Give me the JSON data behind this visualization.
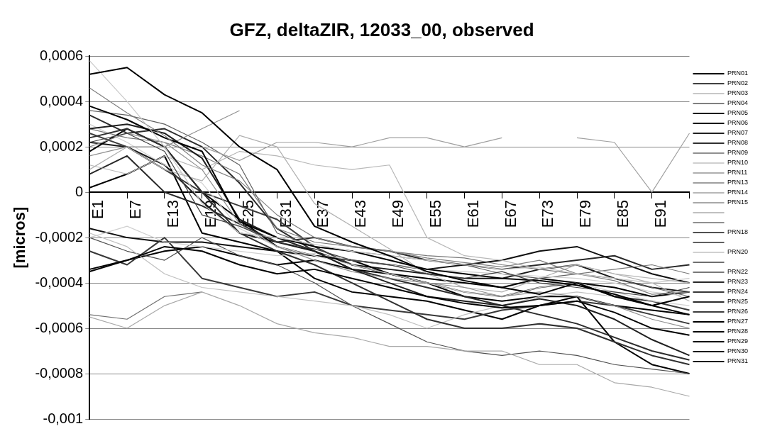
{
  "chart_data": {
    "type": "line",
    "title": "GFZ, deltaZIR, 12033_00, observed",
    "ylabel": "[micros]",
    "legend": "right",
    "grid": "y",
    "marker": "none",
    "categories": [
      "E1",
      "E7",
      "E13",
      "E19",
      "E25",
      "E31",
      "E37",
      "E43",
      "E49",
      "E55",
      "E61",
      "E67",
      "E73",
      "E79",
      "E85",
      "E91",
      null
    ],
    "ylim": [
      -0.001,
      0.0006
    ],
    "yticks": [
      {
        "value": -0.001,
        "label": "-0,001"
      },
      {
        "value": -0.0008,
        "label": "-0,0008"
      },
      {
        "value": -0.0006,
        "label": "-0,0006"
      },
      {
        "value": -0.0004,
        "label": "-0,0004"
      },
      {
        "value": -0.0002,
        "label": "-0,0002"
      },
      0,
      {
        "value": 0.0002,
        "label": "0,0002"
      },
      {
        "value": 0.0004,
        "label": "0,0004"
      },
      {
        "value": 0.0006,
        "label": "0,0006"
      }
    ],
    "series": [
      {
        "name": "PRN01",
        "color": "#000000",
        "values": [
          0.00052,
          0.00055,
          0.00043,
          0.00035,
          0.0002,
          0.0001,
          -0.00015,
          -0.00022,
          -0.00028,
          -0.00035,
          -0.00039,
          -0.00042,
          -0.00045,
          -0.0004,
          -0.00046,
          -0.0005,
          -0.00046
        ]
      },
      {
        "name": "PRN02",
        "color": "#404040",
        "values": [
          0.00022,
          0.00026,
          0.00018,
          -0.0001,
          -0.00015,
          -0.00022,
          -0.00025,
          -0.0003,
          -0.00032,
          -0.00036,
          -0.00038,
          -0.00035,
          -0.0004,
          -0.00042,
          -0.00044,
          -0.00046,
          -0.00042
        ]
      },
      {
        "name": "PRN03",
        "color": "#c8c8c8",
        "values": [
          0.00058,
          0.0004,
          0.0002,
          -5e-05,
          -0.00018,
          -0.0002,
          -0.00023,
          -0.00026,
          -0.00028,
          -0.0003,
          -0.00032,
          -0.00034,
          -0.00033,
          -0.00036,
          -0.00038,
          -0.0004,
          -0.00038
        ]
      },
      {
        "name": "PRN04",
        "color": "#808080",
        "values": [
          0.00046,
          0.00035,
          0.00025,
          0.00012,
          5e-05,
          -0.0001,
          -0.0002,
          -0.00024,
          -0.00026,
          -0.00029,
          -0.00031,
          -0.00033,
          -0.0003,
          -0.00036,
          -0.00039,
          -0.00045,
          -0.00044
        ]
      },
      {
        "name": "PRN05",
        "color": "#000000",
        "values": [
          0.00038,
          0.00032,
          0.00024,
          0.00018,
          -0.00013,
          -0.0002,
          -0.00024,
          -0.00026,
          -0.0003,
          -0.00034,
          -0.00036,
          -0.00038,
          -0.00039,
          -0.00041,
          -0.00045,
          -0.0005,
          -0.00054
        ]
      },
      {
        "name": "PRN06",
        "color": "#000000",
        "values": [
          -0.00035,
          -0.0003,
          -0.00024,
          -0.00026,
          -0.00032,
          -0.00036,
          -0.00034,
          -0.00038,
          -0.00042,
          -0.00046,
          -0.00049,
          -0.00051,
          -0.0005,
          -0.00048,
          -0.00053,
          -0.0006,
          -0.00063
        ]
      },
      {
        "name": "PRN07",
        "color": "#202020",
        "values": [
          0.00028,
          0.0003,
          0.00026,
          0.00015,
          -0.00012,
          -0.0002,
          -0.00026,
          -0.00034,
          -0.0004,
          -0.00046,
          -0.00048,
          -0.0005,
          -0.00047,
          -0.0005,
          -0.00056,
          -0.00065,
          -0.00072
        ]
      },
      {
        "name": "PRN08",
        "color": "#303030",
        "values": [
          0.00024,
          0.00028,
          0.0002,
          0,
          -0.00018,
          -0.00026,
          -0.00032,
          -0.0004,
          -0.00048,
          -0.00056,
          -0.0006,
          -0.0006,
          -0.00058,
          -0.0006,
          -0.00066,
          -0.00072,
          -0.00076
        ]
      },
      {
        "name": "PRN09",
        "color": "#909090",
        "values": [
          0.0002,
          0.00026,
          0.00022,
          0.0001,
          -0.00014,
          -0.00024,
          -0.0003,
          -0.00035,
          -0.00038,
          -0.0004,
          -0.00042,
          -0.00046,
          -0.00044,
          -0.00046,
          -0.0005,
          -0.00056,
          -0.0006
        ]
      },
      {
        "name": "PRN10",
        "color": "#d0d0d0",
        "values": [
          -0.0002,
          -0.00015,
          -0.00022,
          -0.00024,
          -0.00026,
          -0.00028,
          -0.00027,
          -0.0003,
          -0.00032,
          -0.00034,
          -0.00035,
          -0.00036,
          -0.00037,
          -0.00038,
          -0.0004,
          -0.00044,
          -0.00046
        ]
      },
      {
        "name": "PRN11",
        "color": "#b0b0b0",
        "values": [
          0.0001,
          0.0002,
          0.0001,
          5e-05,
          0.00025,
          0.0002,
          -5e-05,
          -0.00015,
          -0.00025,
          -0.00036,
          -0.00042,
          -0.00044,
          -0.00038,
          -0.00032,
          -0.00036,
          -0.0004,
          -0.00048
        ]
      },
      {
        "name": "PRN13",
        "color": "#a0a0a0",
        "values": [
          null,
          null,
          null,
          0.0002,
          0.00014,
          0.00022,
          0.00022,
          0.0002,
          0.00024,
          0.00024,
          0.0002,
          0.00024,
          null,
          0.00024,
          0.00022,
          0,
          0.00026
        ]
      },
      {
        "name": "PRN14",
        "color": "#b8b8b8",
        "values": [
          0.00012,
          8e-05,
          0.00016,
          0.0001,
          0.00018,
          0.00016,
          0.00012,
          0.0001,
          0.00012,
          -0.0002,
          -0.00028,
          -0.0003,
          -0.00034,
          -0.00032,
          -0.00036,
          -0.00038,
          -0.0004
        ]
      },
      {
        "name": "PRN15",
        "color": "#a8a8a8",
        "values": [
          -0.00055,
          -0.0006,
          -0.0005,
          -0.00044,
          -0.0005,
          -0.00058,
          -0.00062,
          -0.00064,
          -0.00068,
          -0.00068,
          -0.0007,
          -0.0007,
          -0.00076,
          -0.00076,
          -0.00084,
          -0.00086,
          -0.0009
        ]
      },
      {
        "color": "#c0c0c0",
        "values": [
          -0.00018,
          -0.00024,
          -0.00036,
          -0.00042,
          -0.00044,
          -0.00046,
          -0.00048,
          -0.0005,
          -0.00054,
          -0.0006,
          -0.00054,
          -0.0005,
          -0.00046,
          -0.00044,
          -0.00046,
          -0.0005,
          -0.00054
        ]
      },
      {
        "color": "#909090",
        "values": [
          0.00016,
          0.0002,
          0.0002,
          0.00028,
          0.00036,
          null,
          null,
          null,
          null,
          null,
          null,
          null,
          null,
          null,
          null,
          null,
          null
        ]
      },
      {
        "name": "PRN18",
        "color": "#505050",
        "values": [
          -0.0002,
          -0.00026,
          -0.0003,
          -0.0002,
          -0.00028,
          -0.00032,
          -0.0004,
          -0.0005,
          -0.00058,
          -0.00066,
          -0.0007,
          -0.00072,
          -0.0007,
          -0.00072,
          -0.00076,
          -0.00078,
          -0.0008
        ]
      },
      {
        "color": "#606060",
        "values": [
          0.00036,
          0.00034,
          0.0003,
          0.00022,
          0.00012,
          -0.00018,
          -0.00024,
          -0.00026,
          -0.00028,
          -0.0003,
          -0.00032,
          -0.00036,
          -0.00038,
          -0.00036,
          -0.00038,
          -0.00042,
          -0.00046
        ]
      },
      {
        "name": "PRN20",
        "color": "#d0d0d0",
        "values": [
          0.0003,
          0.00022,
          0.00012,
          4e-05,
          -0.00016,
          -0.00024,
          -0.00028,
          -0.00032,
          -0.00036,
          -0.0004,
          -0.00044,
          -0.00046,
          -0.00042,
          -0.0004,
          -0.00044,
          -0.00048,
          -0.0005
        ]
      },
      {
        "color": "#707070",
        "values": [
          -0.00054,
          -0.00056,
          -0.00046,
          -0.00044,
          null,
          null,
          null,
          null,
          null,
          null,
          null,
          null,
          null,
          null,
          null,
          null,
          null
        ]
      },
      {
        "name": "PRN22",
        "color": "#787878",
        "values": [
          0.00028,
          0.00024,
          0.00022,
          0.00016,
          8e-05,
          -0.00016,
          -0.00022,
          -0.00024,
          -0.00026,
          -0.00028,
          -0.00029,
          -0.00032,
          -0.00034,
          -0.00036,
          -0.00034,
          -0.00032,
          -0.00036
        ]
      },
      {
        "name": "PRN23",
        "color": "#282828",
        "values": [
          8e-05,
          0.00016,
          0,
          -6e-05,
          -0.00014,
          -0.00022,
          -0.0002,
          -0.00024,
          -0.00026,
          -0.0003,
          -0.00032,
          -0.00034,
          -0.00032,
          -0.0003,
          -0.00028,
          -0.00034,
          -0.00032
        ]
      },
      {
        "name": "PRN24",
        "color": "#383838",
        "values": [
          -0.00026,
          -0.00032,
          -0.0002,
          -0.00038,
          -0.00042,
          -0.00046,
          -0.00044,
          -0.0005,
          -0.00052,
          -0.00054,
          -0.00056,
          -0.00052,
          -0.0005,
          -0.00048,
          -0.0005,
          -0.00054,
          -0.00058
        ]
      },
      {
        "name": "PRN25",
        "color": "#2c2c2c",
        "values": [
          0.00034,
          0.00026,
          0.00028,
          0.0002,
          4e-05,
          -0.00016,
          -0.00026,
          -0.00034,
          -0.00038,
          -0.00042,
          -0.00046,
          -0.0005,
          -0.00054,
          -0.00058,
          -0.00064,
          -0.0007,
          -0.00074
        ]
      },
      {
        "name": "PRN26",
        "color": "#3c3c3c",
        "values": [
          0.00026,
          0.0002,
          0.0001,
          0,
          -6e-05,
          -0.00012,
          -0.00024,
          -0.00032,
          -0.00036,
          -0.0004,
          -0.00044,
          -0.00046,
          -0.00042,
          -0.0004,
          -0.00046,
          -0.00048,
          -0.00052
        ]
      },
      {
        "name": "PRN27",
        "color": "#000000",
        "values": [
          0.00018,
          0.00028,
          0.0002,
          0,
          -0.00012,
          -0.00024,
          -0.00028,
          -0.0003,
          -0.00036,
          -0.00038,
          -0.0004,
          -0.00042,
          -0.00038,
          -0.0004,
          -0.00042,
          -0.00046,
          -0.00044
        ]
      },
      {
        "name": "PRN28",
        "color": "#000000",
        "values": [
          2e-05,
          8e-05,
          0.00016,
          -0.00018,
          -0.00022,
          -0.00026,
          -0.00038,
          -0.00044,
          -0.00046,
          -0.00048,
          -0.00052,
          -0.00056,
          -0.0005,
          -0.00046,
          -0.00066,
          -0.00076,
          -0.0008
        ]
      },
      {
        "name": "PRN29",
        "color": "#000000",
        "values": [
          -0.00034,
          -0.0003,
          -0.00026,
          -0.00024,
          -0.00028,
          -0.00032,
          -0.0003,
          -0.00034,
          -0.00036,
          -0.0004,
          -0.00046,
          -0.00048,
          -0.00046,
          -0.00046,
          -0.0005,
          -0.00052,
          -0.00054
        ]
      },
      {
        "name": "PRN30",
        "color": "#1a1a1a",
        "values": [
          0.00022,
          0.0002,
          0.00012,
          -4e-05,
          -0.00018,
          -0.00022,
          -0.00026,
          -0.00032,
          -0.00034,
          -0.00036,
          -0.00038,
          -0.00038,
          -0.00034,
          -0.00032,
          -0.00038,
          -0.00042,
          -0.00044
        ]
      },
      {
        "name": "PRN31",
        "color": "#101010",
        "values": [
          -0.00016,
          -0.0002,
          -0.00022,
          -0.00022,
          -0.00024,
          -0.00026,
          -0.00028,
          -0.0003,
          -0.00032,
          -0.00034,
          -0.00032,
          -0.0003,
          -0.00026,
          -0.00024,
          -0.0003,
          -0.00036,
          -0.0004
        ]
      }
    ]
  }
}
